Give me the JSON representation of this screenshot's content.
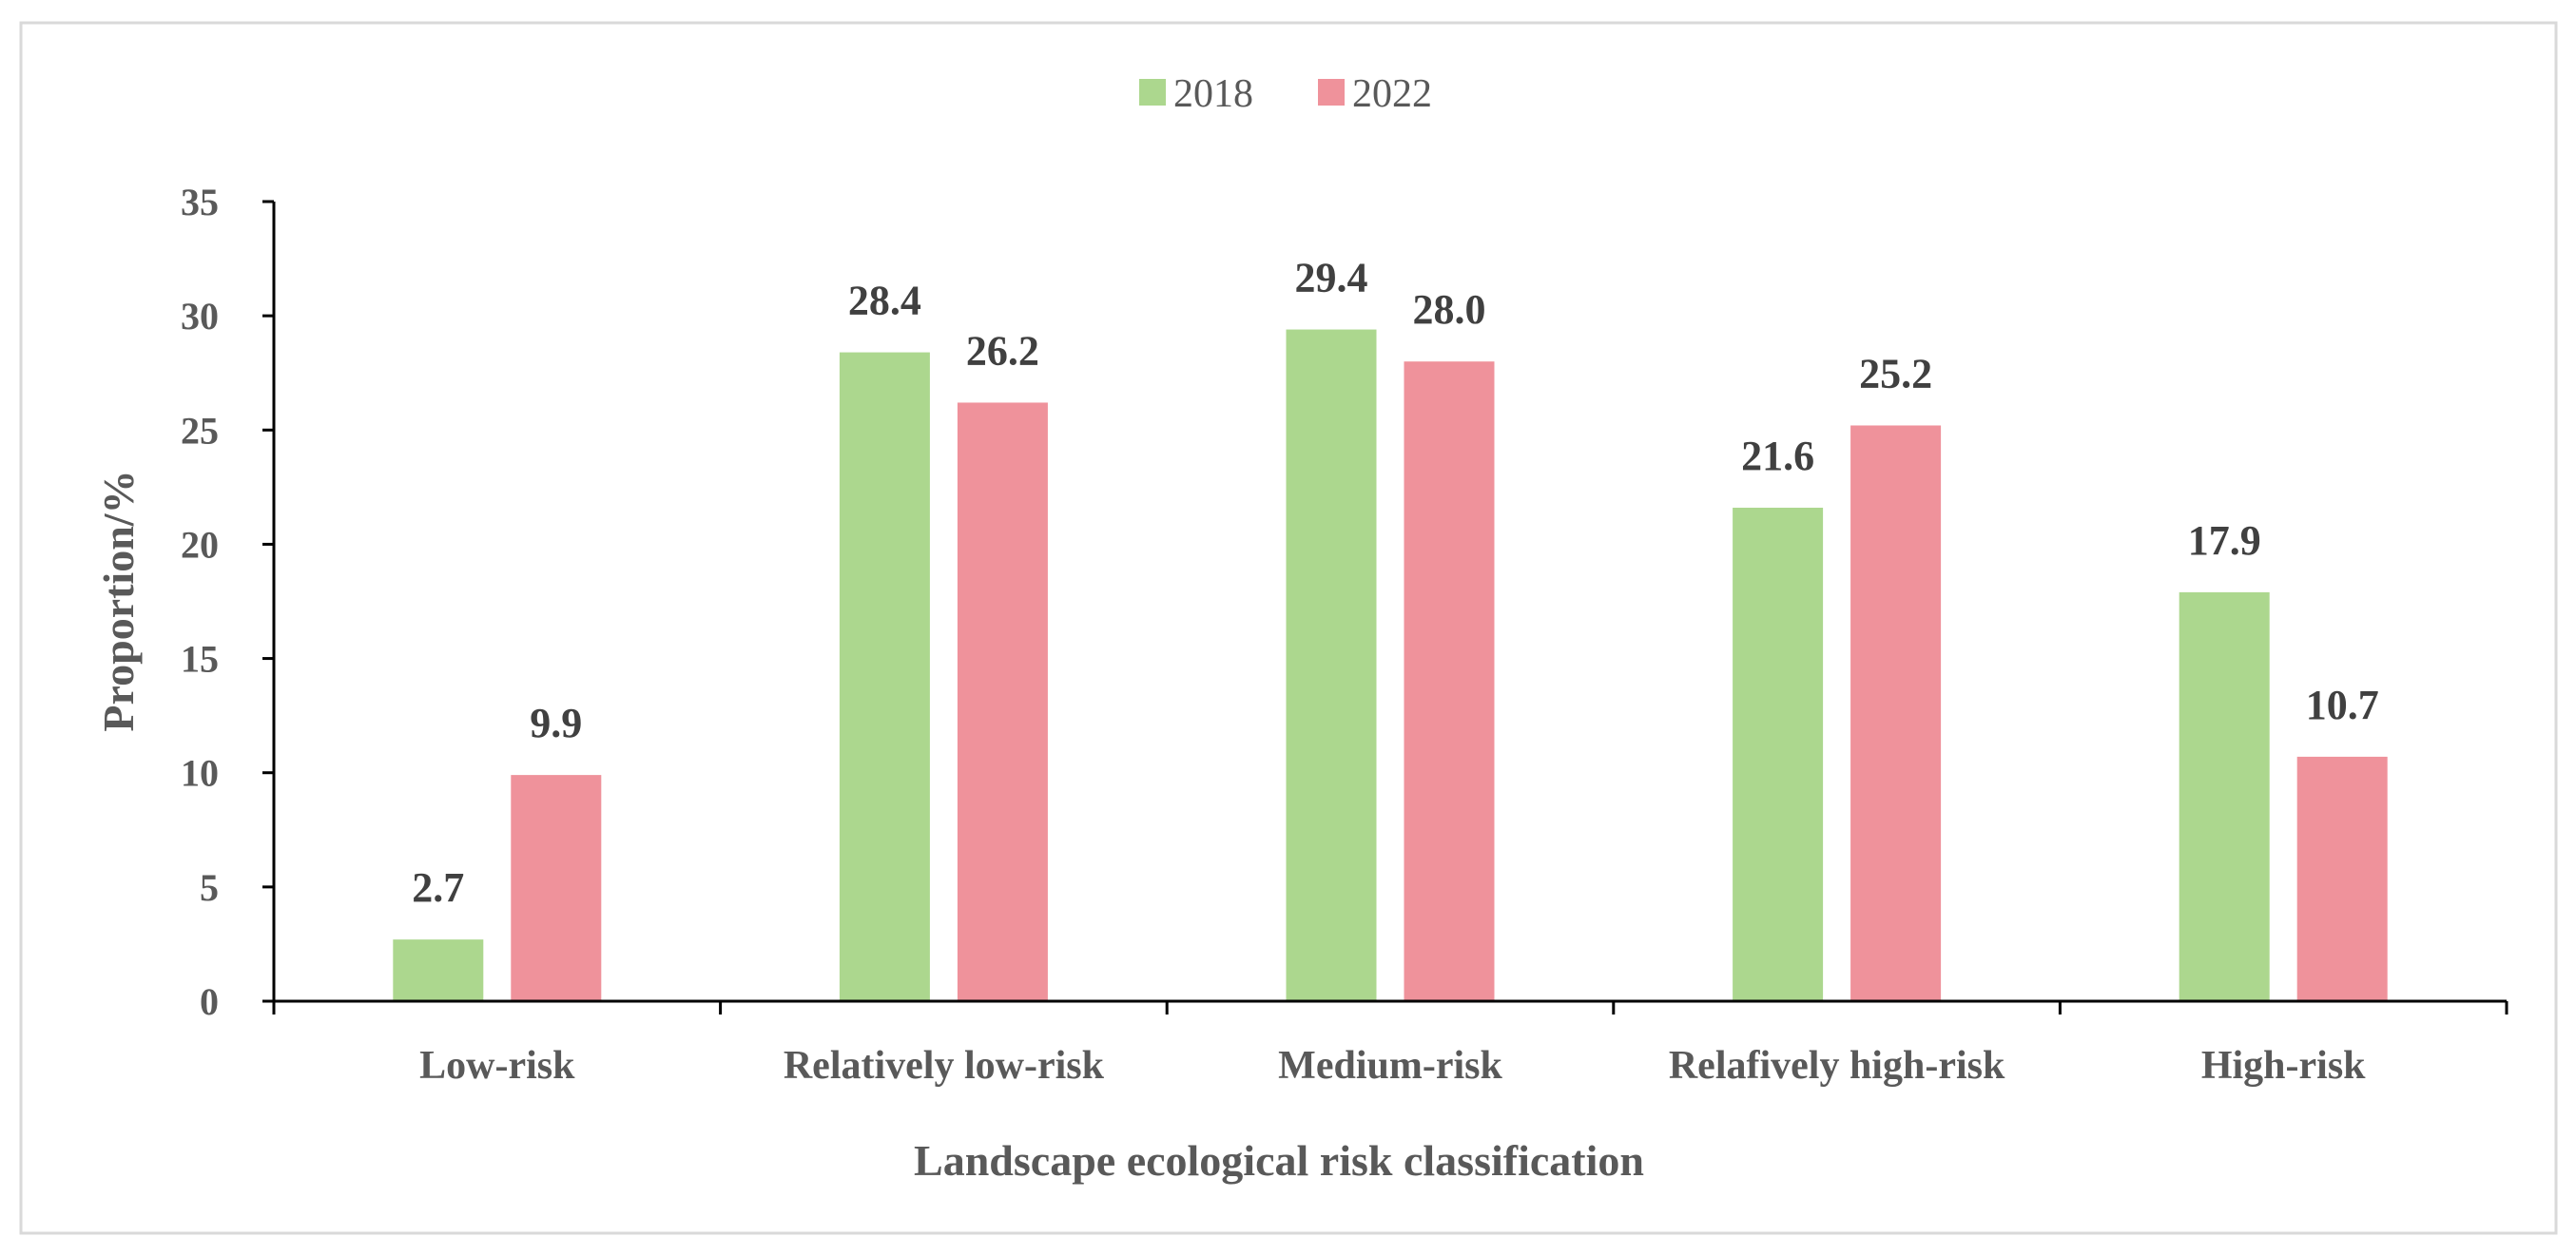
{
  "chart_data": {
    "type": "bar",
    "categories": [
      "Low-risk",
      "Relatively low-risk",
      "Medium-risk",
      "Relafively high-risk",
      "High-risk"
    ],
    "series": [
      {
        "name": "2018",
        "values": [
          2.7,
          28.4,
          29.4,
          21.6,
          17.9
        ],
        "color": "#acd78e"
      },
      {
        "name": "2022",
        "values": [
          9.9,
          26.2,
          28.0,
          25.2,
          10.7
        ],
        "color": "#ef929b"
      }
    ],
    "data_labels": [
      [
        "2.7",
        "28.4",
        "29.4",
        "21.6",
        "17.9"
      ],
      [
        "9.9",
        "26.2",
        "28.0",
        "25.2",
        "10.7"
      ]
    ],
    "xlabel": "Landscape ecological risk classification",
    "ylabel": "Proportion/%",
    "ylim": [
      0,
      35
    ],
    "yticks": [
      "0",
      "5",
      "10",
      "15",
      "20",
      "25",
      "30",
      "35"
    ],
    "grid": false,
    "legend": "top-center"
  }
}
